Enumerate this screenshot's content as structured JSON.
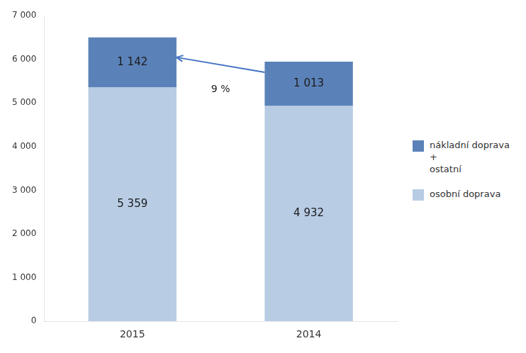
{
  "chart_data": {
    "type": "bar",
    "stacked": true,
    "categories": [
      "2015",
      "2014"
    ],
    "series": [
      {
        "name": "osobní doprava",
        "color": "#b8cce4",
        "values": [
          5359,
          4932
        ],
        "value_labels": [
          "5 359",
          "4 932"
        ]
      },
      {
        "name": "nákladní doprava +\nostatní",
        "color": "#5b82b8",
        "values": [
          1142,
          1013
        ],
        "value_labels": [
          "1 142",
          "1 013"
        ]
      }
    ],
    "ylim": [
      0,
      7000
    ],
    "yticks": [
      0,
      {
        "value": 1000,
        "label": "1 000"
      },
      {
        "value": 2000,
        "label": "2 000"
      },
      {
        "value": 3000,
        "label": "3 000"
      },
      {
        "value": 4000,
        "label": "4 000"
      },
      {
        "value": 5000,
        "label": "5 000"
      },
      {
        "value": 6000,
        "label": "6 000"
      },
      {
        "value": 7000,
        "label": "7 000"
      }
    ],
    "grid": false,
    "legend": "right",
    "data_labels": true,
    "annotations": [
      {
        "text": "9 %",
        "from": "2014",
        "to": "2015",
        "color": "#4472c4"
      }
    ]
  }
}
